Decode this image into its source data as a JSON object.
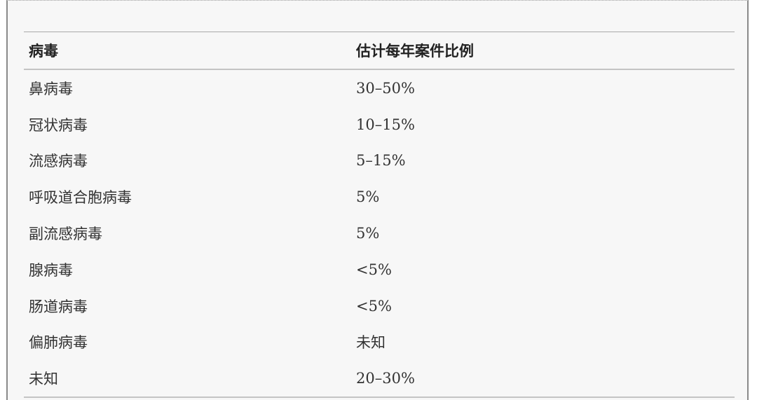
{
  "table": {
    "headers": [
      "病毒",
      "估计每年案件比例"
    ],
    "rows": [
      [
        "鼻病毒",
        "30–50%"
      ],
      [
        "冠状病毒",
        "10–15%"
      ],
      [
        "流感病毒",
        "5–15%"
      ],
      [
        "呼吸道合胞病毒",
        "5%"
      ],
      [
        "副流感病毒",
        "5%"
      ],
      [
        "腺病毒",
        "<5%"
      ],
      [
        "肠道病毒",
        "<5%"
      ],
      [
        "偏肺病毒",
        "未知"
      ],
      [
        "未知",
        "20–30%"
      ]
    ]
  }
}
